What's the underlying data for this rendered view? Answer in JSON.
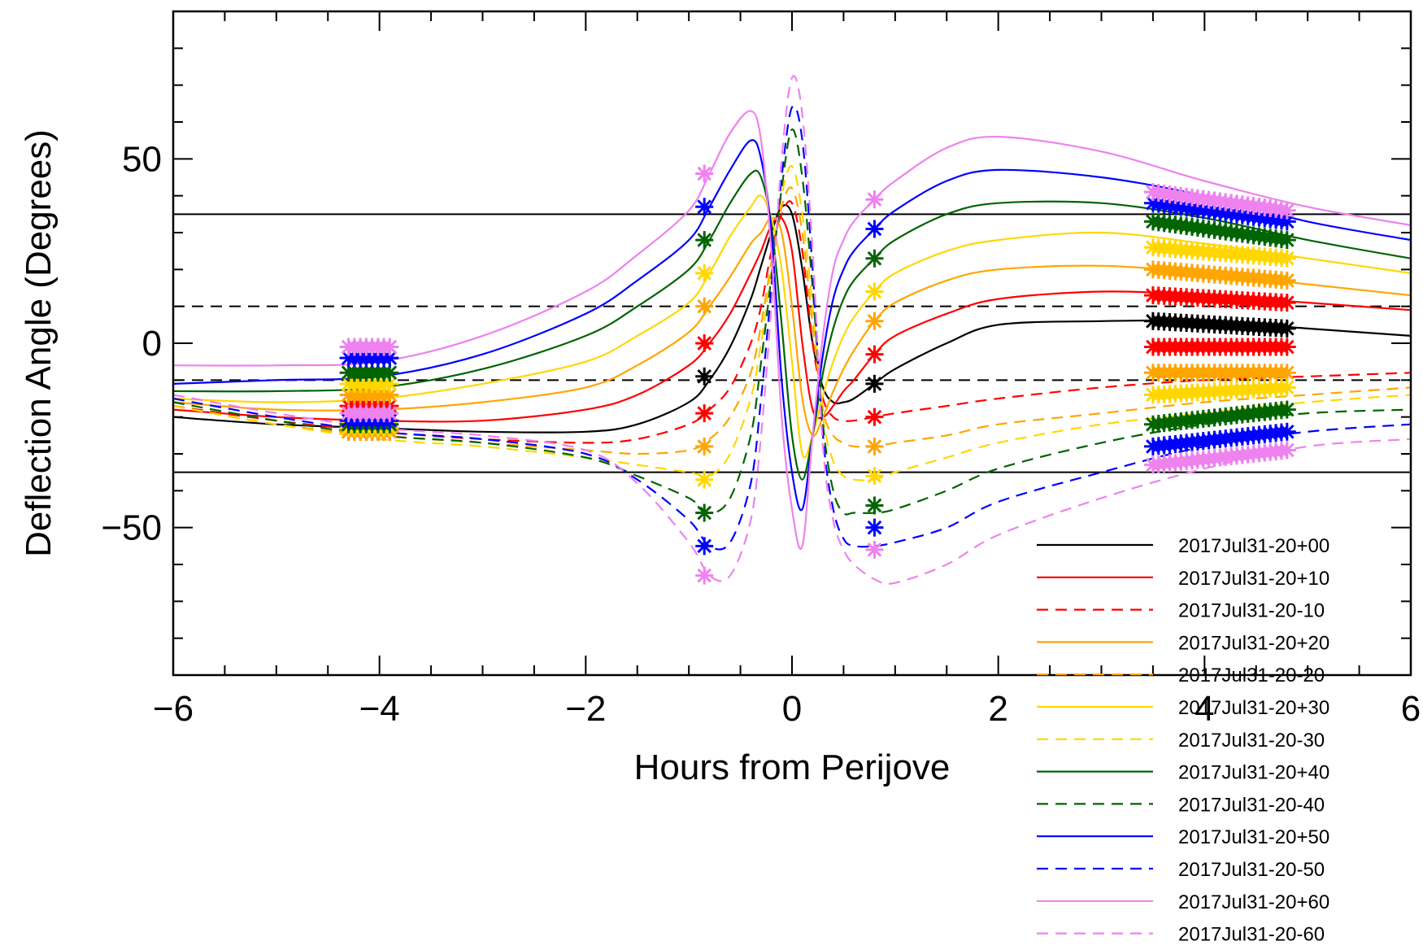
{
  "chart_data": {
    "type": "line",
    "title": "",
    "xlabel": "Hours from Perijove",
    "ylabel": "Deflection Angle (Degrees)",
    "xlim": [
      -6,
      6
    ],
    "ylim": [
      -90,
      90
    ],
    "xticks": [
      -6,
      -4,
      -2,
      0,
      2,
      4,
      6
    ],
    "xtick_labels": [
      "−6",
      "−4",
      "−2",
      "0",
      "2",
      "4",
      "6"
    ],
    "yticks": [
      -50,
      0,
      50
    ],
    "ytick_labels": [
      "−50",
      "0",
      "50"
    ],
    "grid": false,
    "legend_position": "bottom-right",
    "reference_lines": [
      {
        "y": 35,
        "style": "solid",
        "color": "#000000"
      },
      {
        "y": 10,
        "style": "dashed",
        "color": "#000000"
      },
      {
        "y": -10,
        "style": "dashed",
        "color": "#000000"
      },
      {
        "y": -35,
        "style": "solid",
        "color": "#000000"
      }
    ],
    "x": [
      -6,
      -5,
      -4,
      -3,
      -2,
      -1.5,
      -1,
      -0.8,
      -0.6,
      -0.4,
      -0.3,
      -0.2,
      -0.1,
      0,
      0.1,
      0.2,
      0.3,
      0.4,
      0.5,
      0.6,
      0.8,
      1,
      1.5,
      2,
      3,
      4,
      5,
      6
    ],
    "series": [
      {
        "name": "2017Jul31-20+00",
        "color": "#000000",
        "dash": false,
        "values": [
          -20,
          -22,
          -23,
          -24,
          -24,
          -22,
          -16,
          -10,
          -1,
          12,
          21,
          30,
          37,
          35,
          20,
          0,
          -12,
          -16,
          -16,
          -15,
          -11,
          -7,
          0,
          5,
          6,
          6,
          4,
          2
        ]
      },
      {
        "name": "2017Jul31-20+10",
        "color": "#ff0000",
        "dash": false,
        "values": [
          -18,
          -20,
          -21,
          -21,
          -18,
          -14,
          -6,
          0,
          8,
          19,
          25,
          32,
          34,
          25,
          0,
          -18,
          -20,
          -17,
          -13,
          -10,
          -3,
          2,
          8,
          12,
          14,
          13,
          11,
          9
        ]
      },
      {
        "name": "2017Jul31-20-10",
        "color": "#ff0000",
        "dash": true,
        "values": [
          -17,
          -21,
          -24,
          -26,
          -27,
          -26,
          -22,
          -18,
          -12,
          0,
          10,
          25,
          35,
          38,
          25,
          0,
          -15,
          -20,
          -21,
          -21,
          -20,
          -19,
          -17,
          -15,
          -12,
          -10,
          -9,
          -8
        ]
      },
      {
        "name": "2017Jul31-20+20",
        "color": "#ffa500",
        "dash": false,
        "values": [
          -16,
          -18,
          -18,
          -16,
          -12,
          -6,
          3,
          10,
          18,
          27,
          30,
          34,
          30,
          10,
          -15,
          -25,
          -20,
          -13,
          -7,
          -2,
          6,
          11,
          17,
          20,
          21,
          19,
          16,
          13
        ]
      },
      {
        "name": "2017Jul31-20-20",
        "color": "#ffa500",
        "dash": true,
        "values": [
          -17,
          -22,
          -25,
          -27,
          -29,
          -30,
          -29,
          -26,
          -20,
          -8,
          5,
          22,
          37,
          42,
          30,
          5,
          -18,
          -25,
          -27,
          -28,
          -28,
          -27,
          -25,
          -22,
          -19,
          -16,
          -14,
          -12
        ]
      },
      {
        "name": "2017Jul31-20+30",
        "color": "#ffd700",
        "dash": false,
        "values": [
          -15,
          -16,
          -15,
          -11,
          -5,
          2,
          11,
          19,
          29,
          37,
          40,
          34,
          20,
          -5,
          -30,
          -25,
          -14,
          -5,
          2,
          7,
          14,
          19,
          25,
          28,
          30,
          27,
          23,
          19
        ]
      },
      {
        "name": "2017Jul31-20-30",
        "color": "#ffd700",
        "dash": true,
        "values": [
          -17,
          -22,
          -26,
          -28,
          -31,
          -33,
          -35,
          -36,
          -30,
          -15,
          0,
          20,
          40,
          48,
          35,
          10,
          -20,
          -32,
          -36,
          -37,
          -37,
          -35,
          -31,
          -27,
          -22,
          -19,
          -16,
          -14
        ]
      },
      {
        "name": "2017Jul31-20+40",
        "color": "#006400",
        "dash": false,
        "values": [
          -13,
          -13,
          -12,
          -7,
          2,
          10,
          20,
          28,
          38,
          46,
          45,
          32,
          5,
          -25,
          -37,
          -25,
          -8,
          4,
          12,
          17,
          23,
          28,
          35,
          38,
          38,
          34,
          28,
          23
        ]
      },
      {
        "name": "2017Jul31-20-40",
        "color": "#006400",
        "dash": true,
        "values": [
          -16,
          -21,
          -25,
          -27,
          -31,
          -36,
          -42,
          -46,
          -42,
          -25,
          -5,
          18,
          42,
          58,
          45,
          15,
          -22,
          -40,
          -46,
          -46,
          -46,
          -45,
          -40,
          -34,
          -27,
          -22,
          -19,
          -18
        ]
      },
      {
        "name": "2017Jul31-20+50",
        "color": "#0000ff",
        "dash": false,
        "values": [
          -11,
          -10,
          -9,
          -3,
          8,
          17,
          28,
          37,
          47,
          55,
          50,
          30,
          -10,
          -35,
          -45,
          -25,
          -3,
          12,
          20,
          25,
          31,
          36,
          44,
          47,
          45,
          40,
          33,
          28
        ]
      },
      {
        "name": "2017Jul31-20-50",
        "color": "#0000ff",
        "dash": true,
        "values": [
          -15,
          -20,
          -24,
          -26,
          -30,
          -37,
          -48,
          -55,
          -54,
          -38,
          -15,
          15,
          45,
          64,
          55,
          20,
          -25,
          -45,
          -53,
          -55,
          -55,
          -54,
          -50,
          -43,
          -35,
          -28,
          -24,
          -22
        ]
      },
      {
        "name": "2017Jul31-20+60",
        "color": "#ee82ee",
        "dash": false,
        "values": [
          -6,
          -6,
          -5,
          2,
          14,
          24,
          36,
          46,
          57,
          63,
          55,
          25,
          -20,
          -45,
          -55,
          -25,
          2,
          20,
          28,
          33,
          39,
          44,
          53,
          56,
          52,
          44,
          37,
          32
        ]
      },
      {
        "name": "2017Jul31-20-60",
        "color": "#ee82ee",
        "dash": true,
        "values": [
          -14,
          -19,
          -23,
          -25,
          -29,
          -38,
          -54,
          -63,
          -63,
          -48,
          -25,
          10,
          50,
          72,
          62,
          25,
          -28,
          -48,
          -56,
          -60,
          -64,
          -65,
          -60,
          -52,
          -42,
          -34,
          -28,
          -26
        ]
      }
    ],
    "markers": {
      "symbol": "asterisk",
      "groups": [
        {
          "x": -0.85,
          "values": [
            -9,
            0,
            -19,
            10,
            -28,
            19,
            -37,
            28,
            -46,
            37,
            -55,
            46,
            -63
          ]
        },
        {
          "x": 0.8,
          "values": [
            -11,
            -3,
            -20,
            6,
            -28,
            14,
            -36,
            23,
            -44,
            31,
            -50,
            39,
            -56
          ]
        }
      ],
      "bands": [
        {
          "x_start": -4.3,
          "x_end": -3.9,
          "start_values": [
            -23,
            -17,
            -24,
            -14,
            -24,
            -11,
            -23,
            -8,
            -22,
            -4,
            -21,
            -1,
            -19
          ],
          "end_values": [
            -23,
            -17,
            -24,
            -14,
            -24,
            -11,
            -23,
            -8,
            -22,
            -4,
            -21,
            -1,
            -19
          ]
        },
        {
          "x_start": 3.5,
          "x_end": 4.8,
          "start_values": [
            6,
            13,
            -1,
            20,
            -8,
            26,
            -14,
            33,
            -22,
            38,
            -28,
            41,
            -33
          ],
          "end_values": [
            4,
            11,
            -1,
            17,
            -8,
            23,
            -12,
            28,
            -18,
            33,
            -24,
            36,
            -29
          ]
        }
      ]
    }
  }
}
